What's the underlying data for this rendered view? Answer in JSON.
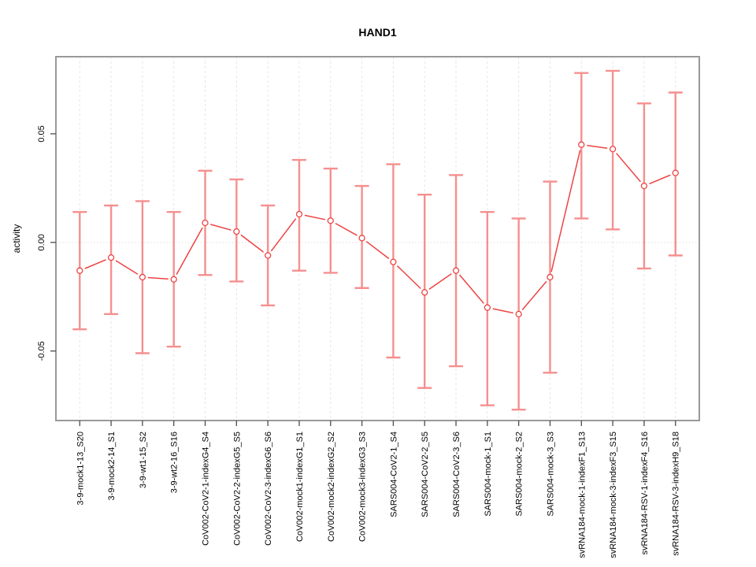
{
  "chart_data": {
    "type": "line",
    "title": "HAND1",
    "xlabel": "",
    "ylabel": "activity",
    "ylim": [
      -0.082,
      0.0855
    ],
    "legend": "none",
    "grid": {
      "vertical_dashed_per_category": true,
      "horizontal_dotted_at_zero": true
    },
    "point_style": "open-circle",
    "error_bars": true,
    "yticks": [
      {
        "value": -0.05,
        "label": "-0.05"
      },
      {
        "value": 0,
        "label": "0.00"
      },
      {
        "value": 0.05,
        "label": "0.05"
      }
    ],
    "categories": [
      "3-9-mock1-13_S20",
      "3-9-mock2-14_S1",
      "3-9-wt1-15_S2",
      "3-9-wt2-16_S16",
      "CoV002-CoV2-1-indexG4_S4",
      "CoV002-CoV2-2-indexG5_S5",
      "CoV002-CoV2-3-indexG6_S6",
      "CoV002-mock1-indexG1_S1",
      "CoV002-mock2-indexG2_S2",
      "CoV002-mock3-indexG3_S3",
      "SARS004-CoV2-1_S4",
      "SARS004-CoV2-2_S5",
      "SARS004-CoV2-3_S6",
      "SARS004-mock-1_S1",
      "SARS004-mock-2_S2",
      "SARS004-mock-3_S3",
      "svRNA184-mock-1-indexF1_S13",
      "svRNA184-mock-3-indexF3_S15",
      "svRNA184-RSV-1-indexF4_S16",
      "svRNA184-RSV-3-indexH9_S18"
    ],
    "series": [
      {
        "name": "activity",
        "values": [
          -0.013,
          -0.007,
          -0.016,
          -0.017,
          0.009,
          0.005,
          -0.006,
          0.013,
          0.01,
          0.002,
          -0.009,
          -0.023,
          -0.013,
          -0.03,
          -0.033,
          -0.016,
          0.045,
          0.043,
          0.026,
          0.032
        ],
        "upper": [
          0.014,
          0.017,
          0.019,
          0.014,
          0.033,
          0.029,
          0.017,
          0.038,
          0.034,
          0.026,
          0.036,
          0.022,
          0.031,
          0.014,
          0.011,
          0.028,
          0.078,
          0.079,
          0.064,
          0.069
        ],
        "lower": [
          -0.04,
          -0.033,
          -0.051,
          -0.048,
          -0.015,
          -0.018,
          -0.029,
          -0.013,
          -0.014,
          -0.021,
          -0.053,
          -0.067,
          -0.057,
          -0.075,
          -0.077,
          -0.06,
          0.011,
          0.006,
          -0.012,
          -0.006
        ]
      }
    ],
    "colors": {
      "line": "#ee4343",
      "point": "#ee4343",
      "error_bar": "#f68f8f",
      "grid": "#e6e6e6",
      "zero_line": "#dedede",
      "box": "#999999",
      "tick": "#4d4d4d",
      "text": "#000000",
      "background": "#ffffff"
    }
  }
}
